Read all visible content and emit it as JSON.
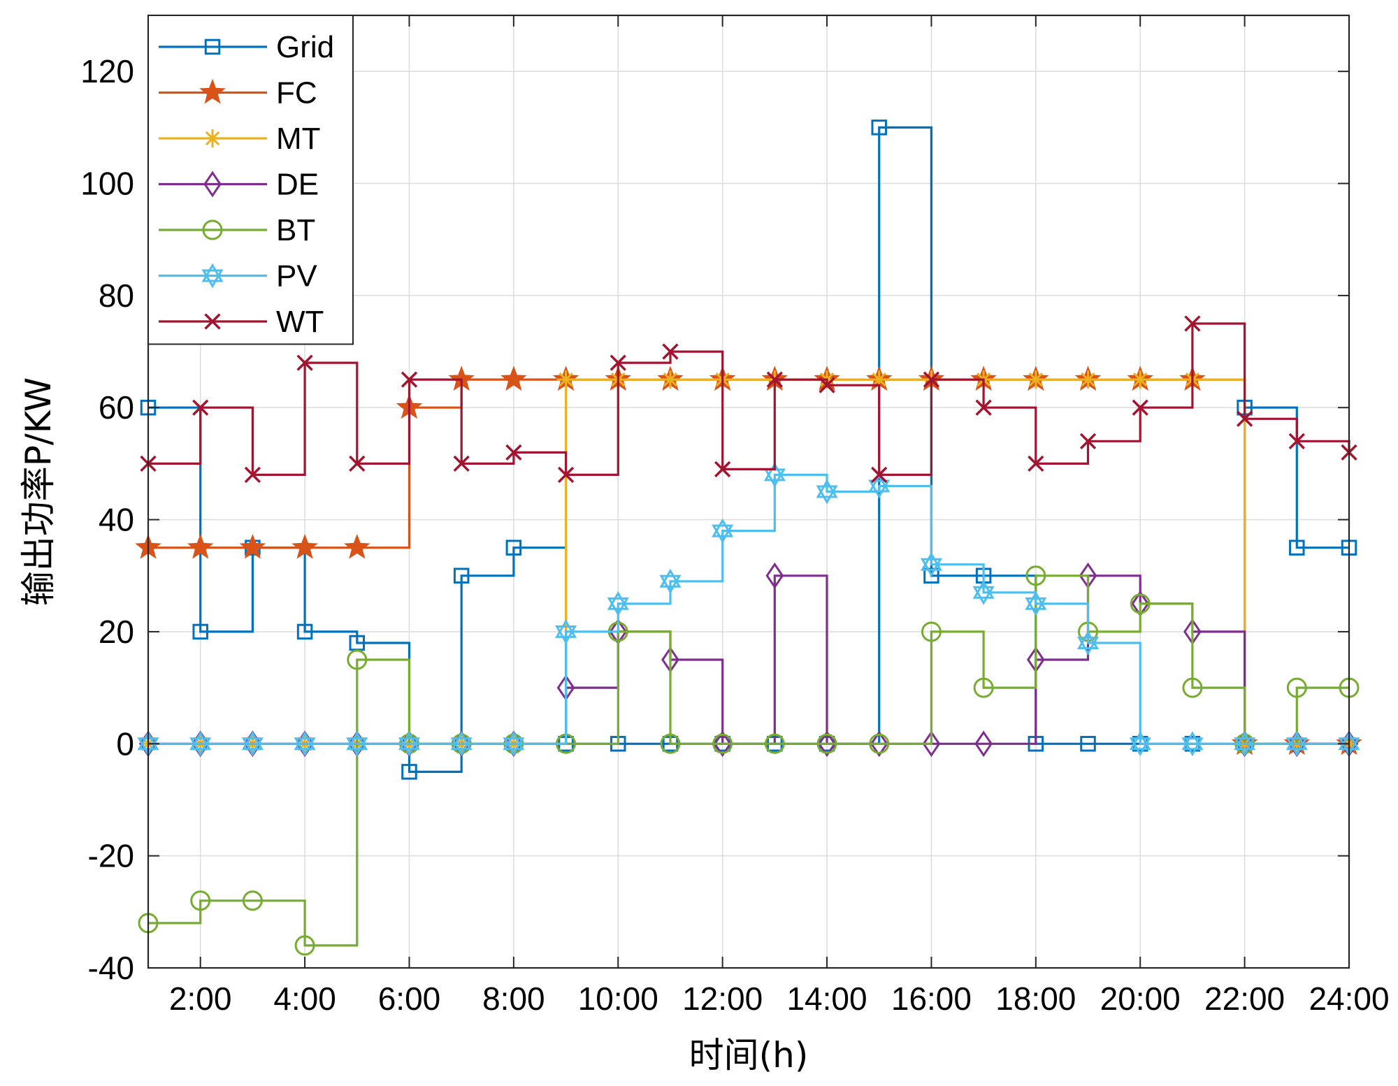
{
  "chart_data": {
    "type": "line",
    "step": "post",
    "title": "",
    "xlabel": "时间(h)",
    "ylabel": "输出功率P/KW",
    "xlim": [
      1,
      24
    ],
    "ylim": [
      -40,
      130
    ],
    "grid": true,
    "legend_position": "top-left",
    "x": [
      1,
      2,
      3,
      4,
      5,
      6,
      7,
      8,
      9,
      10,
      11,
      12,
      13,
      14,
      15,
      16,
      17,
      18,
      19,
      20,
      21,
      22,
      23,
      24
    ],
    "x_ticks": [
      2,
      4,
      6,
      8,
      10,
      12,
      14,
      16,
      18,
      20,
      22,
      24
    ],
    "x_tick_labels": [
      "2:00",
      "4:00",
      "6:00",
      "8:00",
      "10:00",
      "12:00",
      "14:00",
      "16:00",
      "18:00",
      "20:00",
      "22:00",
      "24:00"
    ],
    "y_ticks": [
      -40,
      -20,
      0,
      20,
      40,
      60,
      80,
      100,
      120
    ],
    "y_tick_labels": [
      "-40",
      "-20",
      "0",
      "20",
      "40",
      "60",
      "80",
      "100",
      "120"
    ],
    "series": [
      {
        "name": "Grid",
        "color": "#0072BD",
        "marker": "square",
        "values": [
          60,
          20,
          35,
          20,
          18,
          -5,
          30,
          35,
          0,
          0,
          0,
          0,
          0,
          0,
          110,
          30,
          30,
          0,
          0,
          0,
          0,
          60,
          35,
          35
        ]
      },
      {
        "name": "FC",
        "color": "#D95319",
        "marker": "star5",
        "values": [
          35,
          35,
          35,
          35,
          35,
          60,
          65,
          65,
          65,
          65,
          65,
          65,
          65,
          65,
          65,
          65,
          65,
          65,
          65,
          65,
          65,
          0,
          0,
          0
        ]
      },
      {
        "name": "MT",
        "color": "#EDB120",
        "marker": "asterisk",
        "values": [
          0,
          0,
          0,
          0,
          0,
          0,
          0,
          0,
          65,
          65,
          65,
          65,
          65,
          65,
          65,
          65,
          65,
          65,
          65,
          65,
          65,
          0,
          0,
          0
        ]
      },
      {
        "name": "DE",
        "color": "#7E2F8E",
        "marker": "diamond",
        "values": [
          0,
          0,
          0,
          0,
          0,
          0,
          0,
          0,
          10,
          20,
          15,
          0,
          30,
          0,
          0,
          0,
          0,
          15,
          30,
          25,
          20,
          0,
          0,
          0
        ]
      },
      {
        "name": "BT",
        "color": "#77AC30",
        "marker": "circle",
        "values": [
          -32,
          -28,
          -28,
          -36,
          15,
          0,
          0,
          0,
          0,
          20,
          0,
          0,
          0,
          0,
          0,
          20,
          10,
          30,
          20,
          25,
          10,
          0,
          10,
          10
        ]
      },
      {
        "name": "PV",
        "color": "#4DBEEE",
        "marker": "hexagram",
        "values": [
          0,
          0,
          0,
          0,
          0,
          0,
          0,
          0,
          20,
          25,
          29,
          38,
          48,
          45,
          46,
          32,
          27,
          25,
          18,
          0,
          0,
          0,
          0,
          0
        ]
      },
      {
        "name": "WT",
        "color": "#A2142F",
        "marker": "x",
        "values": [
          50,
          60,
          48,
          68,
          50,
          65,
          50,
          52,
          48,
          68,
          70,
          49,
          65,
          64,
          48,
          65,
          60,
          50,
          54,
          60,
          75,
          58,
          54,
          52
        ]
      }
    ]
  }
}
